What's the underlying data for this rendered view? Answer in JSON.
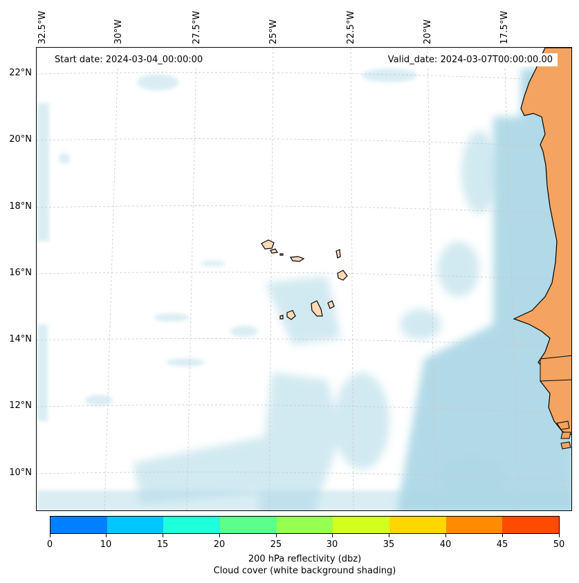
{
  "map": {
    "start_date": "Start date: 2024-03-04_00:00:00",
    "valid_date": "Valid_date: 2024-03-07T00:00:00.00",
    "lon_labels": [
      "32.5°W",
      "30°W",
      "27.5°W",
      "25°W",
      "22.5°W",
      "20°W",
      "17.5°W"
    ],
    "lat_labels": [
      "22°N",
      "20°N",
      "18°N",
      "16°N",
      "14°N",
      "12°N",
      "10°N"
    ],
    "colors": {
      "ocean": "#ffffff",
      "cloud": "#add8e6",
      "land_mainland": "#f4a460",
      "land_islands": "#ffdab9",
      "coastline": "#000000",
      "grid": "#c8c8c8"
    }
  },
  "colorbar": {
    "ticks": [
      "0",
      "10",
      "15",
      "20",
      "25",
      "30",
      "35",
      "40",
      "45",
      "50"
    ],
    "colors": [
      "#0080ff",
      "#00c8ff",
      "#1effdc",
      "#5aff8c",
      "#96ff50",
      "#d4ff1e",
      "#ffd700",
      "#ff8c00",
      "#ff4b00"
    ],
    "label": "200 hPa reflectivity (dbz)",
    "sublabel": "Cloud cover (white background shading)"
  }
}
